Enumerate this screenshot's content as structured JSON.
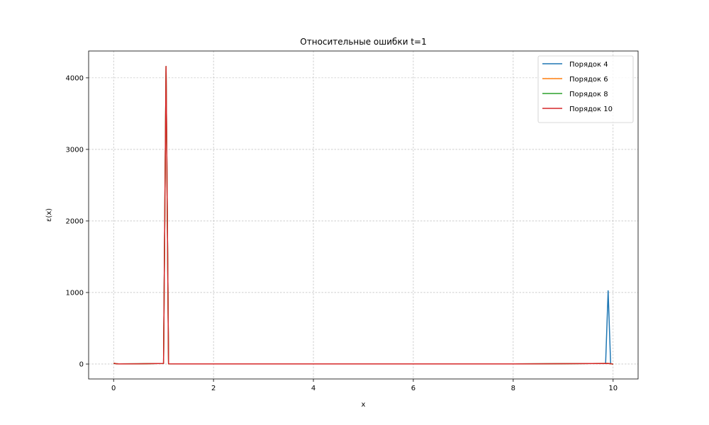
{
  "chart_data": {
    "type": "line",
    "title": "Относительные ошибки t=1",
    "xlabel": "x",
    "ylabel": "ε(x)",
    "xlim": [
      -0.5,
      10.5
    ],
    "ylim": [
      -208,
      4375
    ],
    "xticks": [
      0,
      2,
      4,
      6,
      8,
      10
    ],
    "yticks": [
      0,
      1000,
      2000,
      3000,
      4000
    ],
    "grid": true,
    "legend_position": "top-right",
    "series": [
      {
        "name": "Порядок 4",
        "color": "#1f77b4",
        "x": [
          0,
          0.05,
          0.1,
          0.5,
          1.0,
          1.05,
          1.1,
          2,
          4,
          6,
          8,
          9.85,
          9.9,
          9.95,
          10.0
        ],
        "y": [
          12,
          5,
          2,
          3,
          8,
          4160,
          3,
          2,
          2,
          2,
          2,
          8,
          1025,
          5,
          0
        ]
      },
      {
        "name": "Порядок 6",
        "color": "#ff7f0e",
        "x": [
          0,
          0.05,
          0.1,
          0.5,
          1.0,
          1.05,
          1.1,
          2,
          4,
          6,
          8,
          9.9,
          9.95,
          10.0
        ],
        "y": [
          12,
          5,
          2,
          3,
          8,
          4160,
          3,
          2,
          2,
          2,
          2,
          8,
          5,
          0
        ]
      },
      {
        "name": "Порядок 8",
        "color": "#2ca02c",
        "x": [
          0,
          0.05,
          0.1,
          0.5,
          1.0,
          1.05,
          1.1,
          2,
          4,
          6,
          8,
          9.9,
          9.95,
          10.0
        ],
        "y": [
          12,
          5,
          2,
          3,
          8,
          4160,
          3,
          2,
          2,
          2,
          2,
          8,
          5,
          0
        ]
      },
      {
        "name": "Порядок 10",
        "color": "#d62728",
        "x": [
          0,
          0.05,
          0.1,
          0.5,
          1.0,
          1.05,
          1.1,
          2,
          4,
          6,
          8,
          9.9,
          9.95,
          10.0
        ],
        "y": [
          12,
          5,
          2,
          3,
          8,
          4160,
          3,
          2,
          2,
          2,
          2,
          8,
          5,
          0
        ]
      }
    ]
  }
}
